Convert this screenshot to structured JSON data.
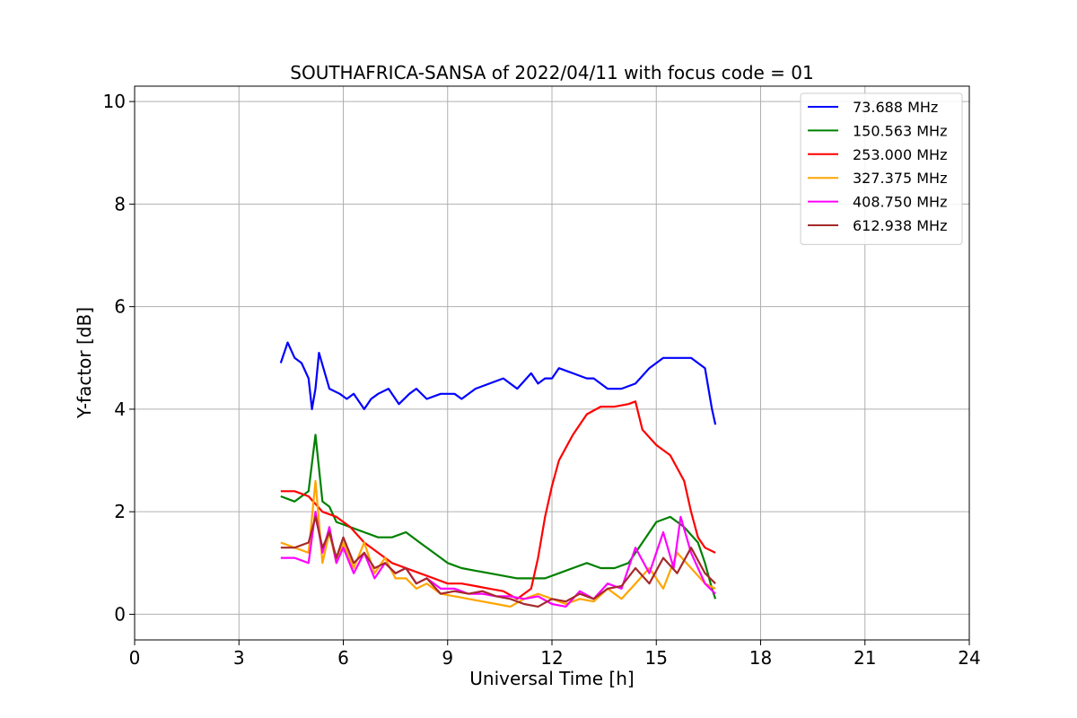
{
  "chart_data": {
    "type": "line",
    "title": "SOUTHAFRICA-SANSA of 2022/04/11 with focus code = 01",
    "xlabel": "Universal Time [h]",
    "ylabel": "Y-factor [dB]",
    "xlim": [
      0,
      24
    ],
    "ylim": [
      -0.5,
      10.3
    ],
    "xticks": [
      0,
      3,
      6,
      9,
      12,
      15,
      18,
      21,
      24
    ],
    "yticks": [
      0,
      2,
      4,
      6,
      8,
      10
    ],
    "grid": true,
    "legend_position": "top-right",
    "series": [
      {
        "name": "73.688 MHz",
        "color": "#0000ff",
        "x": [
          4.2,
          4.4,
          4.6,
          4.8,
          5.0,
          5.1,
          5.2,
          5.3,
          5.6,
          5.9,
          6.1,
          6.3,
          6.6,
          6.8,
          7.0,
          7.3,
          7.6,
          7.9,
          8.1,
          8.4,
          8.8,
          9.2,
          9.4,
          9.8,
          10.2,
          10.6,
          11.0,
          11.4,
          11.6,
          11.8,
          12.0,
          12.2,
          12.6,
          13.0,
          13.2,
          13.6,
          14.0,
          14.4,
          14.8,
          15.2,
          15.6,
          16.0,
          16.4,
          16.6,
          16.7
        ],
        "y": [
          4.9,
          5.3,
          5.0,
          4.9,
          4.6,
          4.0,
          4.4,
          5.1,
          4.4,
          4.3,
          4.2,
          4.3,
          4.0,
          4.2,
          4.3,
          4.4,
          4.1,
          4.3,
          4.4,
          4.2,
          4.3,
          4.3,
          4.2,
          4.4,
          4.5,
          4.6,
          4.4,
          4.7,
          4.5,
          4.6,
          4.6,
          4.8,
          4.7,
          4.6,
          4.6,
          4.4,
          4.4,
          4.5,
          4.8,
          5.0,
          5.0,
          5.0,
          4.8,
          4.0,
          3.7
        ]
      },
      {
        "name": "150.563 MHz",
        "color": "#008000",
        "x": [
          4.2,
          4.6,
          5.0,
          5.2,
          5.4,
          5.6,
          5.8,
          6.2,
          6.6,
          7.0,
          7.4,
          7.8,
          8.2,
          8.6,
          9.0,
          9.4,
          9.8,
          10.2,
          10.6,
          11.0,
          11.4,
          11.8,
          12.2,
          12.6,
          13.0,
          13.4,
          13.8,
          14.2,
          14.6,
          15.0,
          15.4,
          15.8,
          16.2,
          16.4,
          16.6,
          16.7
        ],
        "y": [
          2.3,
          2.2,
          2.4,
          3.5,
          2.2,
          2.1,
          1.8,
          1.7,
          1.6,
          1.5,
          1.5,
          1.6,
          1.4,
          1.2,
          1.0,
          0.9,
          0.85,
          0.8,
          0.75,
          0.7,
          0.7,
          0.7,
          0.8,
          0.9,
          1.0,
          0.9,
          0.9,
          1.0,
          1.4,
          1.8,
          1.9,
          1.7,
          1.4,
          1.0,
          0.5,
          0.3
        ]
      },
      {
        "name": "253.000 MHz",
        "color": "#ff0000",
        "x": [
          4.2,
          4.6,
          5.0,
          5.4,
          5.8,
          6.2,
          6.6,
          7.0,
          7.4,
          7.8,
          8.2,
          8.6,
          9.0,
          9.4,
          9.8,
          10.2,
          10.6,
          11.0,
          11.4,
          11.6,
          11.8,
          12.0,
          12.2,
          12.6,
          13.0,
          13.4,
          13.8,
          14.2,
          14.4,
          14.6,
          15.0,
          15.4,
          15.8,
          16.0,
          16.2,
          16.4,
          16.7
        ],
        "y": [
          2.4,
          2.4,
          2.3,
          2.0,
          1.9,
          1.7,
          1.4,
          1.2,
          1.0,
          0.9,
          0.8,
          0.7,
          0.6,
          0.6,
          0.55,
          0.5,
          0.45,
          0.3,
          0.5,
          1.1,
          1.9,
          2.5,
          3.0,
          3.5,
          3.9,
          4.05,
          4.05,
          4.1,
          4.15,
          3.6,
          3.3,
          3.1,
          2.6,
          2.0,
          1.5,
          1.3,
          1.2
        ]
      },
      {
        "name": "327.375 MHz",
        "color": "#ffa500",
        "x": [
          4.2,
          4.6,
          5.0,
          5.2,
          5.4,
          5.6,
          5.8,
          6.0,
          6.3,
          6.6,
          6.9,
          7.2,
          7.5,
          7.8,
          8.1,
          8.4,
          8.8,
          9.2,
          9.6,
          10.0,
          10.4,
          10.8,
          11.2,
          11.6,
          12.0,
          12.4,
          12.8,
          13.2,
          13.6,
          14.0,
          14.4,
          14.8,
          15.2,
          15.6,
          16.0,
          16.4,
          16.7
        ],
        "y": [
          1.4,
          1.3,
          1.2,
          2.6,
          1.0,
          1.6,
          1.0,
          1.4,
          0.9,
          1.4,
          0.8,
          1.1,
          0.7,
          0.7,
          0.5,
          0.6,
          0.4,
          0.35,
          0.3,
          0.25,
          0.2,
          0.15,
          0.3,
          0.4,
          0.3,
          0.2,
          0.3,
          0.25,
          0.5,
          0.3,
          0.6,
          0.9,
          0.5,
          1.2,
          0.9,
          0.6,
          0.5
        ]
      },
      {
        "name": "408.750 MHz",
        "color": "#ff00ff",
        "x": [
          4.2,
          4.6,
          5.0,
          5.2,
          5.4,
          5.6,
          5.8,
          6.0,
          6.3,
          6.6,
          6.9,
          7.2,
          7.5,
          7.8,
          8.1,
          8.4,
          8.8,
          9.2,
          9.6,
          10.0,
          10.4,
          10.8,
          11.2,
          11.6,
          12.0,
          12.4,
          12.8,
          13.2,
          13.6,
          14.0,
          14.4,
          14.8,
          15.2,
          15.5,
          15.7,
          16.0,
          16.4,
          16.7
        ],
        "y": [
          1.1,
          1.1,
          1.0,
          2.0,
          1.2,
          1.7,
          1.0,
          1.3,
          0.8,
          1.2,
          0.7,
          1.0,
          0.8,
          0.9,
          0.6,
          0.7,
          0.5,
          0.5,
          0.4,
          0.4,
          0.35,
          0.35,
          0.3,
          0.35,
          0.2,
          0.15,
          0.45,
          0.3,
          0.6,
          0.5,
          1.3,
          0.8,
          1.6,
          0.9,
          1.9,
          1.2,
          0.6,
          0.4
        ]
      },
      {
        "name": "612.938 MHz",
        "color": "#a52a2a",
        "x": [
          4.2,
          4.6,
          5.0,
          5.2,
          5.4,
          5.6,
          5.8,
          6.0,
          6.3,
          6.6,
          6.9,
          7.2,
          7.5,
          7.8,
          8.1,
          8.4,
          8.8,
          9.2,
          9.6,
          10.0,
          10.4,
          10.8,
          11.2,
          11.6,
          12.0,
          12.4,
          12.8,
          13.2,
          13.6,
          14.0,
          14.4,
          14.8,
          15.2,
          15.6,
          16.0,
          16.4,
          16.7
        ],
        "y": [
          1.3,
          1.3,
          1.4,
          1.9,
          1.3,
          1.6,
          1.1,
          1.5,
          1.0,
          1.2,
          0.9,
          1.0,
          0.8,
          0.9,
          0.6,
          0.7,
          0.4,
          0.45,
          0.4,
          0.45,
          0.35,
          0.3,
          0.2,
          0.15,
          0.3,
          0.25,
          0.4,
          0.3,
          0.5,
          0.55,
          0.9,
          0.6,
          1.1,
          0.8,
          1.3,
          0.8,
          0.6
        ]
      }
    ],
    "legend": [
      {
        "label": " 73.688 MHz",
        "color": "#0000ff"
      },
      {
        "label": "150.563 MHz",
        "color": "#008000"
      },
      {
        "label": "253.000 MHz",
        "color": "#ff0000"
      },
      {
        "label": "327.375 MHz",
        "color": "#ffa500"
      },
      {
        "label": "408.750 MHz",
        "color": "#ff00ff"
      },
      {
        "label": "612.938 MHz",
        "color": "#a52a2a"
      }
    ]
  }
}
